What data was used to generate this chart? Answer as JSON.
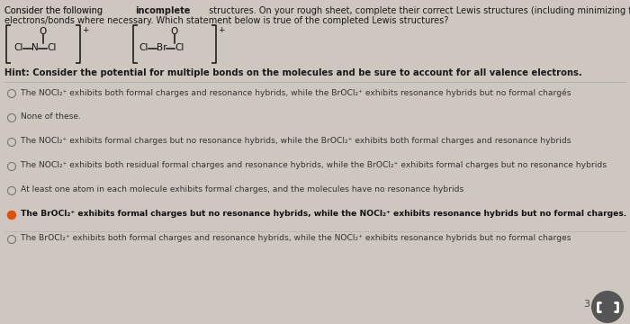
{
  "bg_color": "#cdc7bf",
  "text_color": "#1a1a1a",
  "title_pre": "Consider the following ",
  "title_bold": "incomplete",
  "title_post": " structures. On your rough sheet, complete their correct Lewis structures (including minimizing formal charge) by adding",
  "title_line2": "electrons/bonds where necessary. Which statement below is true of the completed Lewis structures?",
  "hint": "Hint: Consider the potential for multiple bonds on the molecules and be sure to account for all valence electrons.",
  "options": [
    "The NOCl₂⁺ exhibits both formal charges and resonance hybrids, while the BrOCl₂⁺ exhibits resonance hybrids but no formal chargés",
    "None of these.",
    "The NOCl₂⁺ exhibits formal charges but no resonance hybrids, while the BrOCl₂⁺ exhibits both formal charges and resonance hybrids",
    "The NOCl₂⁺ exhibits both residual formal charges and resonance hybrids, while the BrOCl₂⁺ exhibits formal charges but no resonance hybrids",
    "At least one atom in each molecule exhibits formal charges, and the molecules have no resonance hybrids",
    "The BrOCl₂⁺ exhibits formal charges but no resonance hybrids, while the NOCl₂⁺ exhibits resonance hybrids but no formal charges.",
    "The BrOCl₂⁺ exhibits both formal charges and resonance hybrids, while the NOCl₂⁺ exhibits resonance hybrids but no formal charges"
  ],
  "selected_option": 5,
  "radio_fill": "#e05000",
  "radio_border": "#777777",
  "selected_text_color": "#111111",
  "normal_text_color": "#333333",
  "line_color": "#aaaaaa",
  "struct_color": "#111111",
  "icon_bg": "#555555",
  "icon_fg": "#ffffff",
  "number_label": "3"
}
